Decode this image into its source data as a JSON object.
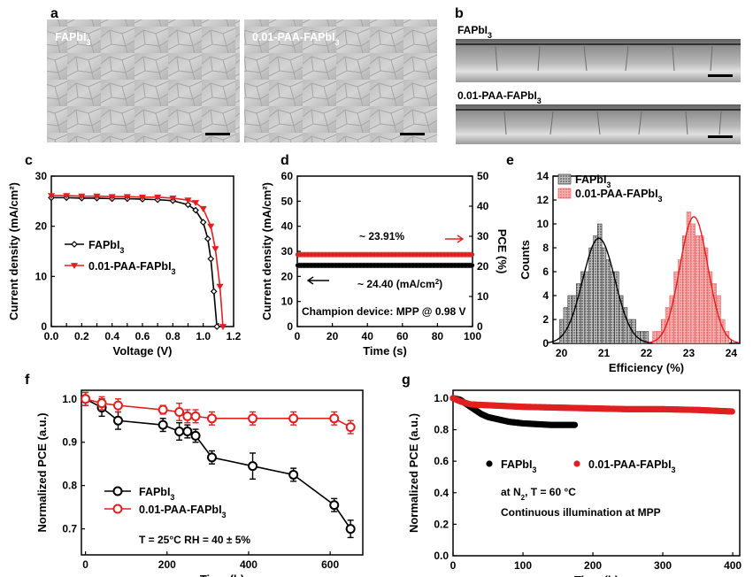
{
  "panels": {
    "a": {
      "letter": "a",
      "images": [
        {
          "label": "FAPbI",
          "label_sub": "3"
        },
        {
          "label": "0.01-PAA-FAPbI",
          "label_sub": "3"
        }
      ]
    },
    "b": {
      "letter": "b",
      "images": [
        {
          "label": "FAPbI",
          "label_sub": "3"
        },
        {
          "label": "0.01-PAA-FAPbI",
          "label_sub": "3"
        }
      ]
    }
  },
  "chart_data": [
    {
      "panel": "c",
      "type": "line",
      "xlabel": "Voltage (V)",
      "ylabel": "Current density (mA/cm²)",
      "xlim": [
        0.0,
        1.2
      ],
      "ylim": [
        0,
        30
      ],
      "xticks": [
        "0.0",
        "0.1",
        "0.2",
        "0.3",
        "0.4",
        "0.5",
        "0.6",
        "0.7",
        "0.8",
        "0.9",
        "1.0",
        "1.1",
        "1.2"
      ],
      "xtick_values": [
        0.0,
        0.1,
        0.2,
        0.3,
        0.4,
        0.5,
        0.6,
        0.7,
        0.8,
        0.9,
        1.0,
        1.1,
        1.2
      ],
      "xtick_labeled": [
        true,
        false,
        true,
        false,
        true,
        false,
        true,
        false,
        true,
        false,
        true,
        false,
        true
      ],
      "yticks": [
        "0",
        "10",
        "20",
        "30"
      ],
      "ytick_values": [
        0,
        10,
        20,
        30
      ],
      "legend": "center-left",
      "series": [
        {
          "name": "FAPbI3",
          "name_main": "FAPbI",
          "name_sub": "3",
          "color": "#000000",
          "marker": "diamond-open",
          "x": [
            0.0,
            0.1,
            0.2,
            0.3,
            0.4,
            0.5,
            0.6,
            0.7,
            0.8,
            0.9,
            0.95,
            1.0,
            1.03,
            1.05,
            1.07,
            1.09
          ],
          "y": [
            25.7,
            25.7,
            25.6,
            25.6,
            25.5,
            25.5,
            25.4,
            25.3,
            25.1,
            24.3,
            23.2,
            20.8,
            17.5,
            13.5,
            7.0,
            0.0
          ]
        },
        {
          "name": "0.01-PAA-FAPbI3",
          "name_main": "0.01-PAA-FAPbI",
          "name_sub": "3",
          "color": "#e02020",
          "marker": "triangle-down",
          "x": [
            0.0,
            0.1,
            0.2,
            0.3,
            0.4,
            0.5,
            0.6,
            0.7,
            0.8,
            0.9,
            0.95,
            1.0,
            1.05,
            1.08,
            1.11,
            1.13
          ],
          "y": [
            26.1,
            26.1,
            26.0,
            26.0,
            25.9,
            25.9,
            25.8,
            25.8,
            25.6,
            25.2,
            24.7,
            23.5,
            20.0,
            15.5,
            8.0,
            0.0
          ]
        }
      ]
    },
    {
      "panel": "d",
      "type": "line",
      "xlabel": "Time (s)",
      "ylabel": "Current density (mA/cm²)",
      "ylabel_right": "PCE (%)",
      "xlim": [
        0,
        100
      ],
      "ylim": [
        0,
        60
      ],
      "ylim_right": [
        0,
        50
      ],
      "xticks": [
        "0",
        "20",
        "40",
        "60",
        "80",
        "100"
      ],
      "xtick_values": [
        0,
        20,
        40,
        60,
        80,
        100
      ],
      "yticks": [
        "0",
        "10",
        "20",
        "30",
        "40",
        "50",
        "60"
      ],
      "ytick_values": [
        0,
        10,
        20,
        30,
        40,
        50,
        60
      ],
      "yticks_right": [
        "0",
        "10",
        "20",
        "30",
        "40",
        "50"
      ],
      "ytick_right_values": [
        0,
        10,
        20,
        30,
        40,
        50
      ],
      "series": [
        {
          "name": "Current density",
          "axis": "left",
          "color": "#000000",
          "x": [
            0,
            100
          ],
          "y": [
            24.4,
            24.4
          ]
        },
        {
          "name": "PCE",
          "axis": "right",
          "color": "#e02020",
          "x": [
            0,
            100
          ],
          "y": [
            23.91,
            23.91
          ]
        }
      ],
      "annotations": {
        "pce": "~ 23.91%",
        "current": "~ 24.40 (mA/cm",
        "current_sup": "2",
        "current_end": ")",
        "champion": "Champion device: MPP @ 0.98 V"
      }
    },
    {
      "panel": "e",
      "type": "bar",
      "xlabel": "Efficiency (%)",
      "ylabel": "Counts",
      "xlim": [
        19.8,
        24.2
      ],
      "ylim": [
        0,
        14
      ],
      "xticks": [
        "20",
        "21",
        "22",
        "23",
        "24"
      ],
      "xtick_values": [
        20,
        21,
        22,
        23,
        24
      ],
      "yticks": [
        "0",
        "2",
        "4",
        "6",
        "8",
        "10",
        "12",
        "14"
      ],
      "ytick_values": [
        0,
        2,
        4,
        6,
        8,
        10,
        12,
        14
      ],
      "legend": "top-left",
      "bin_width": 0.1,
      "series": [
        {
          "name": "FAPbI3",
          "name_main": "FAPbI",
          "name_sub": "3",
          "color": "#555555",
          "x": [
            20.0,
            20.1,
            20.2,
            20.3,
            20.4,
            20.5,
            20.6,
            20.7,
            20.8,
            20.9,
            21.0,
            21.1,
            21.2,
            21.3,
            21.4,
            21.5,
            21.6,
            21.7,
            21.8,
            21.9,
            22.0
          ],
          "y": [
            2,
            3,
            4,
            4,
            5,
            6,
            6,
            8,
            9,
            10,
            8,
            7,
            6,
            6,
            4,
            3,
            2,
            2,
            1,
            1,
            1
          ],
          "fit_mean": 20.88,
          "fit_sd": 0.38,
          "fit_peak": 8.8
        },
        {
          "name": "0.01-PAA-FAPbI3",
          "name_main": "0.01-PAA-FAPbI",
          "name_sub": "3",
          "color": "#f08080",
          "x": [
            22.2,
            22.3,
            22.4,
            22.5,
            22.6,
            22.7,
            22.8,
            22.9,
            23.0,
            23.1,
            23.2,
            23.3,
            23.4,
            23.5,
            23.6,
            23.7,
            23.8,
            23.9
          ],
          "y": [
            1,
            1,
            2,
            3,
            4,
            6,
            7,
            9,
            11,
            10,
            9,
            9,
            8,
            6,
            5,
            4,
            2,
            1
          ],
          "fit_mean": 23.12,
          "fit_sd": 0.33,
          "fit_peak": 10.6
        }
      ]
    },
    {
      "panel": "f",
      "type": "line",
      "xlabel": "Time (h)",
      "ylabel": "Normalized PCE (a.u.)",
      "xlim": [
        -10,
        680
      ],
      "ylim": [
        0.64,
        1.02
      ],
      "xticks": [
        "0",
        "200",
        "400",
        "600"
      ],
      "xtick_values": [
        0,
        200,
        400,
        600
      ],
      "yticks": [
        "0.7",
        "0.8",
        "0.9",
        "1.0"
      ],
      "ytick_values": [
        0.7,
        0.8,
        0.9,
        1.0
      ],
      "legend": "bottom-left",
      "series": [
        {
          "name": "FAPbI3",
          "name_main": "FAPbI",
          "name_sub": "3",
          "color": "#000000",
          "x": [
            0,
            40,
            80,
            190,
            230,
            250,
            270,
            310,
            410,
            510,
            610,
            650
          ],
          "y": [
            1.0,
            0.98,
            0.95,
            0.94,
            0.925,
            0.925,
            0.915,
            0.865,
            0.845,
            0.825,
            0.755,
            0.7
          ],
          "err": [
            0.015,
            0.02,
            0.02,
            0.015,
            0.02,
            0.015,
            0.015,
            0.015,
            0.03,
            0.015,
            0.015,
            0.02
          ]
        },
        {
          "name": "0.01-PAA-FAPbI3",
          "name_main": "0.01-PAA-FAPbI",
          "name_sub": "3",
          "color": "#e02020",
          "x": [
            0,
            40,
            80,
            190,
            230,
            250,
            270,
            310,
            410,
            510,
            610,
            650
          ],
          "y": [
            1.0,
            0.99,
            0.985,
            0.975,
            0.97,
            0.96,
            0.96,
            0.955,
            0.955,
            0.955,
            0.955,
            0.935
          ],
          "err": [
            0.015,
            0.015,
            0.015,
            0.01,
            0.02,
            0.015,
            0.015,
            0.015,
            0.015,
            0.015,
            0.015,
            0.015
          ]
        }
      ],
      "annotation": "T = 25°C RH = 40 ± 5%"
    },
    {
      "panel": "g",
      "type": "scatter",
      "xlabel": "Time (h)",
      "ylabel": "Normalized PCE (a.u.)",
      "xlim": [
        0,
        410
      ],
      "ylim": [
        0.0,
        1.05
      ],
      "xticks": [
        "0",
        "100",
        "200",
        "300",
        "400"
      ],
      "xtick_values": [
        0,
        100,
        200,
        300,
        400
      ],
      "yticks": [
        "0.0",
        "0.2",
        "0.4",
        "0.6",
        "0.8",
        "1.0"
      ],
      "ytick_values": [
        0.0,
        0.2,
        0.4,
        0.6,
        0.8,
        1.0
      ],
      "legend": "center",
      "series": [
        {
          "name": "FAPbI3",
          "name_main": "FAPbI",
          "name_sub": "3",
          "color": "#000000",
          "x": [
            0,
            10,
            20,
            30,
            40,
            50,
            60,
            70,
            80,
            100,
            120,
            140,
            160,
            175
          ],
          "y": [
            1.0,
            0.99,
            0.96,
            0.93,
            0.9,
            0.88,
            0.87,
            0.86,
            0.85,
            0.84,
            0.835,
            0.83,
            0.83,
            0.83
          ]
        },
        {
          "name": "0.01-PAA-FAPbI3",
          "name_main": "0.01-PAA-FAPbI",
          "name_sub": "3",
          "color": "#e02020",
          "x": [
            0,
            10,
            25,
            50,
            75,
            100,
            150,
            200,
            250,
            300,
            350,
            400
          ],
          "y": [
            1.0,
            0.98,
            0.96,
            0.955,
            0.95,
            0.945,
            0.94,
            0.935,
            0.93,
            0.93,
            0.925,
            0.915
          ]
        }
      ],
      "annotations": {
        "condition_main": "at N",
        "condition_sub": "2",
        "condition_end": ", T = 60 °C",
        "illumination": "Continuous illumination at MPP"
      }
    }
  ]
}
